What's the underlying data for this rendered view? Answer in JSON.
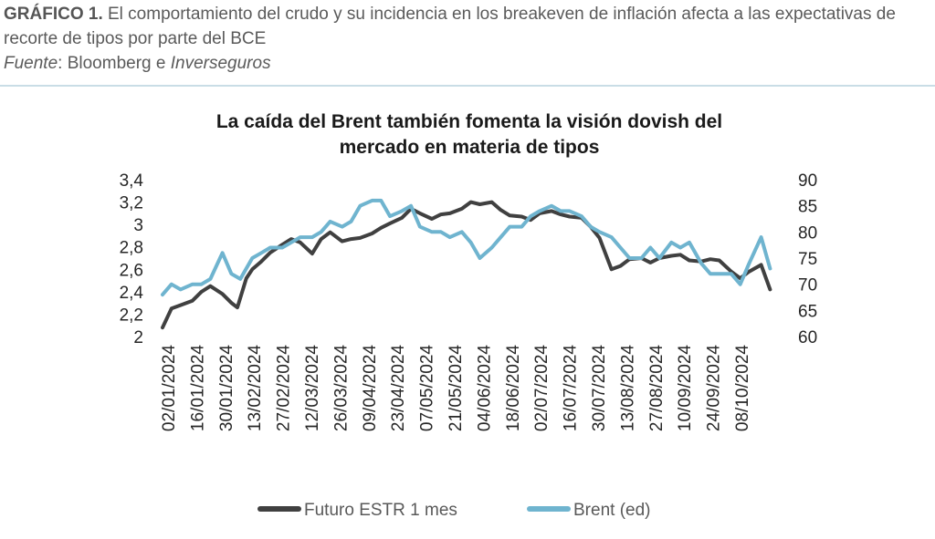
{
  "caption": {
    "lead": "GRÁFICO 1.",
    "text": " El comportamiento del crudo y su incidencia en los breakeven de inflación afecta a las expectativas de recorte de tipos por parte del BCE",
    "source_label": "Fuente",
    "source_mid": ": Bloomberg e ",
    "source_italic": "Inverseguros"
  },
  "chart_data": {
    "type": "line",
    "title": [
      "La caída del Brent también fomenta la visión dovish del",
      "mercado en materia de tipos"
    ],
    "x_labels": [
      "02/01/2024",
      "16/01/2024",
      "30/01/2024",
      "13/02/2024",
      "27/02/2024",
      "12/03/2024",
      "26/03/2024",
      "09/04/2024",
      "23/04/2024",
      "07/05/2024",
      "21/05/2024",
      "04/06/2024",
      "18/06/2024",
      "02/07/2024",
      "16/07/2024",
      "30/07/2024",
      "13/08/2024",
      "27/08/2024",
      "10/09/2024",
      "24/09/2024",
      "08/10/2024"
    ],
    "y_left": {
      "ticks": [
        "3,4",
        "3,2",
        "3",
        "2,8",
        "2,6",
        "2,4",
        "2,2",
        "2"
      ],
      "min": 2.0,
      "max": 3.4
    },
    "y_right": {
      "ticks": [
        "90",
        "85",
        "80",
        "75",
        "70",
        "65",
        "60"
      ],
      "min": 60,
      "max": 90
    },
    "series": [
      {
        "name": "Futuro ESTR 1 mes",
        "axis": "left",
        "color": "#404040",
        "x": [
          0,
          0.3,
          0.6,
          1,
          1.3,
          1.6,
          2,
          2.3,
          2.5,
          2.8,
          3,
          3.3,
          3.6,
          4,
          4.3,
          4.6,
          5,
          5.3,
          5.6,
          6,
          6.3,
          6.6,
          7,
          7.3,
          7.6,
          8,
          8.3,
          8.6,
          9,
          9.3,
          9.6,
          10,
          10.3,
          10.6,
          11,
          11.3,
          11.6,
          12,
          12.3,
          12.6,
          13,
          13.3,
          13.6,
          14,
          14.3,
          14.6,
          15,
          15.3,
          15.6,
          16,
          16.3,
          16.6,
          17,
          17.3,
          17.6,
          18,
          18.3,
          18.6,
          19,
          19.3,
          19.6,
          20,
          20.3
        ],
        "values": [
          2.08,
          2.25,
          2.28,
          2.32,
          2.4,
          2.45,
          2.38,
          2.3,
          2.26,
          2.52,
          2.6,
          2.67,
          2.75,
          2.82,
          2.87,
          2.84,
          2.74,
          2.87,
          2.93,
          2.85,
          2.87,
          2.88,
          2.92,
          2.97,
          3.01,
          3.06,
          3.14,
          3.1,
          3.05,
          3.09,
          3.1,
          3.14,
          3.2,
          3.18,
          3.2,
          3.13,
          3.08,
          3.07,
          3.04,
          3.1,
          3.12,
          3.09,
          3.07,
          3.06,
          2.98,
          2.88,
          2.6,
          2.63,
          2.69,
          2.7,
          2.66,
          2.7,
          2.72,
          2.73,
          2.68,
          2.67,
          2.69,
          2.68,
          2.58,
          2.52,
          2.58,
          2.64,
          2.42
        ],
        "data_x_max": 20.5
      },
      {
        "name": "Brent (ed)",
        "axis": "right",
        "color": "#6fb4cf",
        "x": [
          0,
          0.3,
          0.6,
          1,
          1.3,
          1.6,
          2,
          2.3,
          2.6,
          3,
          3.3,
          3.6,
          4,
          4.3,
          4.6,
          5,
          5.3,
          5.6,
          6,
          6.3,
          6.6,
          7,
          7.3,
          7.6,
          8,
          8.3,
          8.6,
          9,
          9.3,
          9.6,
          10,
          10.3,
          10.6,
          11,
          11.3,
          11.6,
          12,
          12.3,
          12.6,
          13,
          13.3,
          13.6,
          14,
          14.3,
          14.6,
          15,
          15.3,
          15.6,
          16,
          16.3,
          16.6,
          17,
          17.3,
          17.6,
          18,
          18.3,
          18.6,
          19,
          19.3,
          19.6,
          20,
          20.3
        ],
        "values": [
          68,
          70,
          69,
          70,
          70,
          71,
          76,
          72,
          71,
          75,
          76,
          77,
          77,
          78,
          79,
          79,
          80,
          82,
          81,
          82,
          85,
          86,
          86,
          83,
          84,
          85,
          81,
          80,
          80,
          79,
          80,
          78,
          75,
          77,
          79,
          81,
          81,
          83,
          84,
          85,
          84,
          84,
          83,
          81,
          80,
          79,
          77,
          75,
          75,
          77,
          75,
          78,
          77,
          78,
          74,
          72,
          72,
          72,
          70,
          74,
          79,
          73
        ],
        "data_x_max": 20.5
      }
    ]
  },
  "legend": {
    "items": [
      "Futuro ESTR 1 mes",
      "Brent (ed)"
    ]
  }
}
